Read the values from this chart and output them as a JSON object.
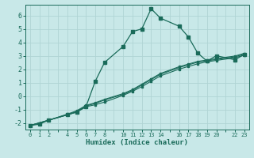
{
  "xlabel": "Humidex (Indice chaleur)",
  "background_color": "#c8e8e8",
  "grid_color": "#b0d4d4",
  "line_color": "#1a6b5a",
  "xlim": [
    -0.5,
    23.5
  ],
  "ylim": [
    -2.5,
    6.8
  ],
  "xticks_all": [
    0,
    1,
    2,
    3,
    4,
    5,
    6,
    7,
    8,
    9,
    10,
    11,
    12,
    13,
    14,
    15,
    16,
    17,
    18,
    19,
    20,
    21,
    22,
    23
  ],
  "xtick_labels": {
    "0": "0",
    "1": "1",
    "2": "2",
    "3": "",
    "4": "4",
    "5": "5",
    "6": "6",
    "7": "7",
    "8": "8",
    "9": "",
    "10": "10",
    "11": "11",
    "12": "12",
    "13": "13",
    "14": "14",
    "15": "",
    "16": "16",
    "17": "17",
    "18": "18",
    "19": "19",
    "20": "20",
    "21": "",
    "22": "22",
    "23": "23"
  },
  "yticks": [
    -2,
    -1,
    0,
    1,
    2,
    3,
    4,
    5,
    6
  ],
  "line1_x": [
    0,
    1,
    2,
    4,
    5,
    6,
    7,
    8,
    10,
    11,
    12,
    13,
    14,
    16,
    17,
    18,
    19,
    20,
    22,
    23
  ],
  "line1_y": [
    -2.2,
    -2.1,
    -1.8,
    -1.4,
    -1.2,
    -0.8,
    1.1,
    2.5,
    3.7,
    4.8,
    5.0,
    6.5,
    5.8,
    5.2,
    4.4,
    3.2,
    2.6,
    3.0,
    2.7,
    3.1
  ],
  "line2_x": [
    0,
    2,
    4,
    5,
    6,
    7,
    8,
    10,
    11,
    12,
    13,
    14,
    16,
    17,
    18,
    19,
    20,
    22,
    23
  ],
  "line2_y": [
    -2.2,
    -1.8,
    -1.4,
    -1.2,
    -0.8,
    -0.65,
    -0.45,
    0.05,
    0.35,
    0.7,
    1.1,
    1.5,
    2.0,
    2.2,
    2.4,
    2.55,
    2.65,
    2.85,
    3.05
  ],
  "line3_x": [
    0,
    2,
    4,
    5,
    6,
    7,
    8,
    10,
    11,
    12,
    13,
    14,
    16,
    17,
    18,
    19,
    20,
    22,
    23
  ],
  "line3_y": [
    -2.2,
    -1.8,
    -1.4,
    -1.15,
    -0.75,
    -0.55,
    -0.3,
    0.12,
    0.42,
    0.82,
    1.22,
    1.62,
    2.12,
    2.32,
    2.52,
    2.62,
    2.72,
    2.92,
    3.12
  ],
  "line4_x": [
    0,
    2,
    4,
    5,
    6,
    7,
    8,
    10,
    11,
    12,
    13,
    14,
    16,
    17,
    18,
    19,
    20,
    22,
    23
  ],
  "line4_y": [
    -2.2,
    -1.8,
    -1.35,
    -1.1,
    -0.7,
    -0.5,
    -0.25,
    0.18,
    0.48,
    0.88,
    1.28,
    1.68,
    2.18,
    2.38,
    2.58,
    2.68,
    2.78,
    2.98,
    3.18
  ]
}
